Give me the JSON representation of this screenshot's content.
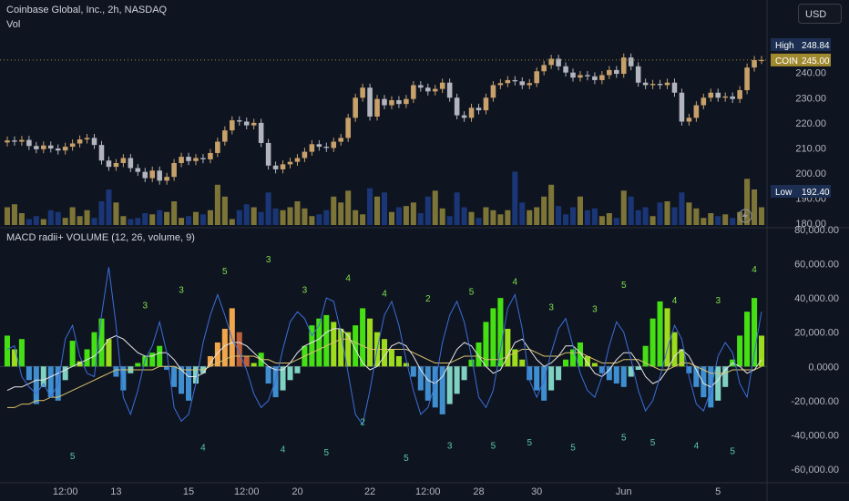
{
  "header": {
    "symbol_line": "Coinbase Global, Inc., 2h, NASDAQ",
    "volume_label": "Vol",
    "currency": "USD"
  },
  "price_panel": {
    "high_label": "High",
    "high_value": "248.84",
    "ticker_label": "COIN",
    "ticker_value": "245.00",
    "low_label": "Low",
    "low_value": "192.40"
  },
  "indicator_panel": {
    "title": "MACD radii+ VOLUME (12, 26, volume, 9)"
  },
  "colors": {
    "background": "#0f1421",
    "candle_up": "#c8a06a",
    "candle_down": "#b2b5be",
    "volume_up": "#8a7f3a",
    "volume_down": "#1c3a80",
    "hist_pos_strong": "#45e014",
    "hist_pos_weak": "#9cdc1c",
    "hist_orange": "#f0a64a",
    "hist_dark_orange": "#c0603a",
    "hist_neg_teal": "#7fd1c2",
    "hist_neg_blue": "#3f8fd0",
    "high_badge": "#1c2f52",
    "coin_badge": "#a08a30",
    "low_badge": "#1c2f52"
  },
  "chart_data": [
    {
      "type": "candlestick",
      "y_axis_ticks": [
        "240.00",
        "230.00",
        "220.00",
        "210.00",
        "200.00",
        "190.00",
        "180.00"
      ],
      "ylim": [
        179,
        258
      ],
      "x_tick_labels": [
        "12:00",
        "13",
        "15",
        "12:00",
        "20",
        "22",
        "12:00",
        "28",
        "30",
        "Jun",
        "5"
      ],
      "close": [
        213.0,
        212.5,
        213.2,
        210.8,
        209.5,
        211.0,
        209.8,
        209.0,
        210.5,
        211.8,
        213.4,
        214.0,
        211.2,
        205.0,
        202.5,
        204.0,
        206.0,
        202.0,
        200.5,
        198.0,
        201.0,
        197.0,
        198.5,
        204.0,
        206.5,
        204.8,
        206.0,
        205.5,
        208.0,
        212.5,
        217.0,
        221.0,
        220.5,
        219.0,
        220.0,
        212.0,
        203.0,
        201.5,
        203.5,
        204.5,
        206.0,
        208.5,
        211.5,
        210.5,
        210.0,
        212.5,
        214.0,
        222.0,
        230.0,
        234.0,
        222.5,
        229.5,
        227.0,
        229.0,
        227.5,
        229.5,
        235.0,
        234.0,
        232.5,
        233.5,
        236.0,
        230.0,
        223.0,
        222.0,
        226.0,
        225.0,
        230.0,
        235.0,
        235.8,
        237.0,
        236.5,
        235.0,
        235.8,
        240.5,
        243.0,
        245.5,
        242.5,
        240.0,
        238.0,
        239.0,
        238.5,
        237.0,
        239.0,
        241.0,
        239.5,
        246.0,
        242.5,
        236.0,
        235.0,
        235.5,
        235.0,
        236.0,
        232.0,
        220.5,
        222.0,
        227.0,
        230.0,
        232.0,
        230.0,
        230.5,
        229.5,
        233.0,
        242.0,
        245.0,
        245.0
      ]
    },
    {
      "type": "bar",
      "series": [
        {
          "name": "Vol",
          "values": [
            0.3,
            0.35,
            0.2,
            0.1,
            0.15,
            0.1,
            0.25,
            0.22,
            0.12,
            0.3,
            0.15,
            0.25,
            0.12,
            0.4,
            0.6,
            0.38,
            0.15,
            0.1,
            0.12,
            0.2,
            0.18,
            0.25,
            0.22,
            0.4,
            0.12,
            0.15,
            0.22,
            0.18,
            0.25,
            0.68,
            0.48,
            0.1,
            0.25,
            0.35,
            0.3,
            0.22,
            0.55,
            0.28,
            0.25,
            0.3,
            0.4,
            0.28,
            0.15,
            0.18,
            0.25,
            0.48,
            0.38,
            0.58,
            0.25,
            0.18,
            0.62,
            0.48,
            0.55,
            0.22,
            0.3,
            0.32,
            0.38,
            0.2,
            0.48,
            0.58,
            0.28,
            0.15,
            0.55,
            0.3,
            0.22,
            0.12,
            0.3,
            0.25,
            0.18,
            0.25,
            0.9,
            0.38,
            0.25,
            0.3,
            0.48,
            0.68,
            0.32,
            0.18,
            0.3,
            0.48,
            0.25,
            0.28,
            0.15,
            0.2,
            0.12,
            0.58,
            0.48,
            0.25,
            0.3,
            0.15,
            0.38,
            0.4,
            0.3,
            0.55,
            0.38,
            0.28,
            0.12,
            0.2,
            0.15,
            0.18,
            0.12,
            0.22,
            0.78,
            0.6,
            0.3
          ]
        }
      ],
      "up": [
        1,
        1,
        1,
        0,
        0,
        1,
        0,
        0,
        1,
        1,
        1,
        1,
        0,
        0,
        0,
        1,
        1,
        0,
        0,
        0,
        1,
        0,
        1,
        1,
        1,
        0,
        1,
        0,
        1,
        1,
        1,
        1,
        0,
        0,
        1,
        0,
        0,
        0,
        1,
        1,
        1,
        1,
        1,
        0,
        0,
        1,
        1,
        1,
        1,
        1,
        0,
        1,
        0,
        1,
        0,
        1,
        1,
        0,
        0,
        1,
        1,
        0,
        0,
        0,
        1,
        0,
        1,
        1,
        1,
        1,
        0,
        0,
        1,
        1,
        1,
        1,
        0,
        0,
        0,
        1,
        0,
        0,
        1,
        1,
        0,
        1,
        0,
        0,
        0,
        1,
        0,
        1,
        0,
        0,
        1,
        1,
        1,
        1,
        0,
        1,
        0,
        1,
        1,
        1,
        1
      ]
    },
    {
      "type": "bar",
      "y_axis_ticks": [
        "80,000.00",
        "60,000.00",
        "40,000.00",
        "20,000.00",
        "0.0000",
        "-20,000.00",
        "-40,000.00",
        "-60,000.00"
      ],
      "ylim": [
        -68000,
        80000
      ],
      "histogram": [
        18000,
        10000,
        16000,
        -8000,
        -22000,
        -12000,
        -18000,
        -20000,
        -8000,
        15000,
        3000,
        10000,
        20000,
        28000,
        16000,
        -6000,
        -14000,
        -4000,
        2000,
        6000,
        8000,
        12000,
        -2000,
        -12000,
        -16000,
        -20000,
        -10000,
        -4000,
        6000,
        14000,
        22000,
        34000,
        20000,
        6000,
        2000,
        8000,
        -10000,
        -18000,
        -14000,
        -8000,
        -4000,
        12000,
        24000,
        28000,
        30000,
        26000,
        22000,
        20000,
        24000,
        34000,
        28000,
        20000,
        16000,
        10000,
        6000,
        2000,
        -6000,
        -14000,
        -20000,
        -24000,
        -28000,
        -22000,
        -16000,
        -8000,
        4000,
        14000,
        26000,
        34000,
        40000,
        22000,
        10000,
        4000,
        -8000,
        -14000,
        -20000,
        -14000,
        -8000,
        4000,
        10000,
        14000,
        6000,
        2000,
        -4000,
        -8000,
        -10000,
        -12000,
        -6000,
        -2000,
        12000,
        28000,
        38000,
        34000,
        20000,
        10000,
        -4000,
        -12000,
        -18000,
        -24000,
        -20000,
        -12000,
        4000,
        18000,
        32000,
        40000,
        18000
      ],
      "macd_line": [
        10000,
        12000,
        -6000,
        -12000,
        -16000,
        -10000,
        -18000,
        -10000,
        16000,
        24000,
        6000,
        -4000,
        -6000,
        30000,
        58000,
        24000,
        -18000,
        -28000,
        -14000,
        4000,
        12000,
        26000,
        8000,
        -24000,
        -32000,
        -28000,
        -10000,
        14000,
        30000,
        42000,
        30000,
        16000,
        8000,
        -2000,
        -16000,
        -24000,
        -20000,
        -8000,
        10000,
        26000,
        32000,
        28000,
        18000,
        24000,
        40000,
        38000,
        20000,
        -4000,
        -28000,
        -34000,
        -14000,
        10000,
        30000,
        38000,
        24000,
        4000,
        -14000,
        -28000,
        -24000,
        -10000,
        14000,
        30000,
        38000,
        26000,
        6000,
        -18000,
        -24000,
        -14000,
        10000,
        34000,
        42000,
        22000,
        -8000,
        -18000,
        -8000,
        8000,
        22000,
        28000,
        12000,
        -4000,
        -14000,
        -18000,
        -6000,
        12000,
        26000,
        20000,
        4000,
        -14000,
        -26000,
        -20000,
        -6000,
        10000,
        24000,
        16000,
        -6000,
        -22000,
        -26000,
        -14000,
        6000,
        14000,
        8000,
        -10000,
        -18000,
        8000,
        32000
      ],
      "signal_line": [
        -14000,
        -12000,
        -12000,
        -10000,
        -8000,
        -8000,
        -6000,
        -4000,
        -2000,
        0,
        2000,
        4000,
        6000,
        10000,
        16000,
        18000,
        16000,
        12000,
        8000,
        6000,
        6000,
        8000,
        8000,
        4000,
        -2000,
        -6000,
        -6000,
        -4000,
        2000,
        8000,
        12000,
        14000,
        14000,
        12000,
        8000,
        4000,
        0,
        -2000,
        -2000,
        2000,
        8000,
        12000,
        14000,
        16000,
        20000,
        22000,
        22000,
        18000,
        10000,
        2000,
        -2000,
        0,
        6000,
        12000,
        14000,
        12000,
        6000,
        -2000,
        -8000,
        -10000,
        -6000,
        2000,
        10000,
        14000,
        12000,
        6000,
        0,
        -4000,
        -2000,
        6000,
        14000,
        16000,
        10000,
        4000,
        0,
        2000,
        6000,
        12000,
        12000,
        8000,
        2000,
        -4000,
        -6000,
        -2000,
        4000,
        8000,
        8000,
        2000,
        -6000,
        -10000,
        -8000,
        -2000,
        6000,
        10000,
        6000,
        -2000,
        -10000,
        -12000,
        -8000,
        -2000,
        2000,
        0,
        -4000,
        -2000,
        4000
      ],
      "slow_line": [
        -24000,
        -24000,
        -22000,
        -22000,
        -20000,
        -20000,
        -18000,
        -18000,
        -16000,
        -14000,
        -12000,
        -10000,
        -8000,
        -6000,
        -4000,
        -2000,
        -2000,
        -2000,
        -2000,
        -2000,
        -2000,
        0,
        0,
        0,
        -2000,
        -2000,
        -2000,
        -2000,
        0,
        2000,
        4000,
        6000,
        6000,
        6000,
        6000,
        4000,
        4000,
        2000,
        2000,
        2000,
        4000,
        6000,
        8000,
        10000,
        12000,
        14000,
        16000,
        16000,
        14000,
        12000,
        10000,
        10000,
        10000,
        10000,
        10000,
        10000,
        8000,
        6000,
        4000,
        2000,
        2000,
        2000,
        4000,
        6000,
        6000,
        6000,
        4000,
        4000,
        4000,
        6000,
        8000,
        10000,
        10000,
        8000,
        6000,
        6000,
        6000,
        8000,
        8000,
        8000,
        6000,
        4000,
        2000,
        2000,
        2000,
        4000,
        4000,
        4000,
        2000,
        0,
        -2000,
        -2000,
        0,
        2000,
        2000,
        0,
        -2000,
        -4000,
        -4000,
        -4000,
        -2000,
        -2000,
        -2000,
        -2000,
        0
      ],
      "counts": [
        {
          "label": "5",
          "x": 9,
          "y": -52000
        },
        {
          "label": "3",
          "x": 19,
          "y": 36000
        },
        {
          "label": "3",
          "x": 24,
          "y": 45000
        },
        {
          "label": "4",
          "x": 27,
          "y": -47000
        },
        {
          "label": "5",
          "x": 30,
          "y": 56000
        },
        {
          "label": "3",
          "x": 36,
          "y": 63000
        },
        {
          "label": "4",
          "x": 38,
          "y": -48000
        },
        {
          "label": "3",
          "x": 41,
          "y": 45000
        },
        {
          "label": "5",
          "x": 44,
          "y": -50000
        },
        {
          "label": "4",
          "x": 47,
          "y": 52000
        },
        {
          "label": "2",
          "x": 49,
          "y": -32000
        },
        {
          "label": "4",
          "x": 52,
          "y": 43000
        },
        {
          "label": "5",
          "x": 55,
          "y": -53000
        },
        {
          "label": "2",
          "x": 58,
          "y": 40000
        },
        {
          "label": "3",
          "x": 61,
          "y": -46000
        },
        {
          "label": "5",
          "x": 64,
          "y": 44000
        },
        {
          "label": "5",
          "x": 67,
          "y": -46000
        },
        {
          "label": "4",
          "x": 70,
          "y": 50000
        },
        {
          "label": "5",
          "x": 72,
          "y": -44000
        },
        {
          "label": "3",
          "x": 75,
          "y": 35000
        },
        {
          "label": "5",
          "x": 78,
          "y": -47000
        },
        {
          "label": "3",
          "x": 81,
          "y": 34000
        },
        {
          "label": "5",
          "x": 85,
          "y": 48000
        },
        {
          "label": "5",
          "x": 85,
          "y": -41000
        },
        {
          "label": "5",
          "x": 89,
          "y": -44000
        },
        {
          "label": "4",
          "x": 92,
          "y": 39000
        },
        {
          "label": "4",
          "x": 95,
          "y": -46000
        },
        {
          "label": "3",
          "x": 98,
          "y": 39000
        },
        {
          "label": "5",
          "x": 100,
          "y": -49000
        },
        {
          "label": "4",
          "x": 103,
          "y": 57000
        }
      ]
    }
  ]
}
